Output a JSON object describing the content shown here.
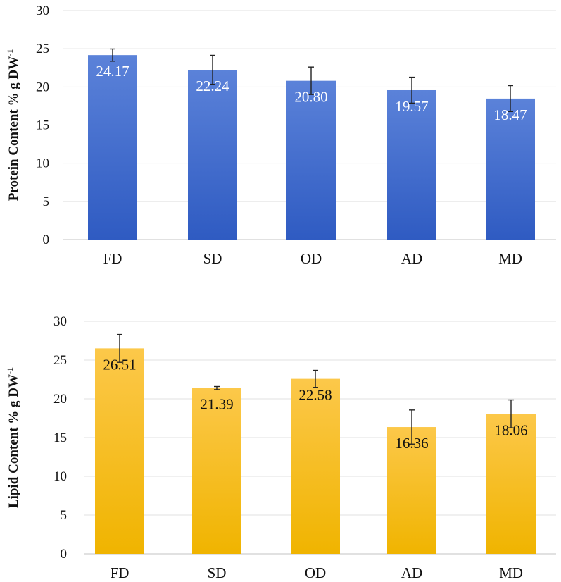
{
  "chart_data": [
    {
      "type": "bar",
      "title": "",
      "xlabel": "",
      "ylabel": "Protein Content % g DW",
      "ylabel_superscript": "-1",
      "categories": [
        "FD",
        "SD",
        "OD",
        "AD",
        "MD"
      ],
      "values": [
        24.17,
        22.24,
        20.8,
        19.57,
        18.47
      ],
      "value_labels": [
        "24.17",
        "22.24",
        "20.80",
        "19.57",
        "18.47"
      ],
      "errors": [
        0.8,
        1.9,
        1.8,
        1.7,
        1.7
      ],
      "ylim": [
        0,
        30
      ],
      "yticks": [
        0,
        5,
        10,
        15,
        20,
        25,
        30
      ],
      "grid": true,
      "color_top": "#5b82d9",
      "color_bottom": "#2f5bc2",
      "label_color": "#ffffff"
    },
    {
      "type": "bar",
      "title": "",
      "xlabel": "",
      "ylabel": "Lipid Content % g DW",
      "ylabel_superscript": "-1",
      "categories": [
        "FD",
        "SD",
        "OD",
        "AD",
        "MD"
      ],
      "values": [
        26.51,
        21.39,
        22.58,
        16.36,
        18.06
      ],
      "value_labels": [
        "26.51",
        "21.39",
        "22.58",
        "16.36",
        "18.06"
      ],
      "errors": [
        1.8,
        0.2,
        1.1,
        2.2,
        1.8
      ],
      "ylim": [
        0,
        30
      ],
      "yticks": [
        0,
        5,
        10,
        15,
        20,
        25,
        30
      ],
      "grid": true,
      "color_top": "#fcc84a",
      "color_bottom": "#f0b400",
      "label_color": "#111111"
    }
  ]
}
